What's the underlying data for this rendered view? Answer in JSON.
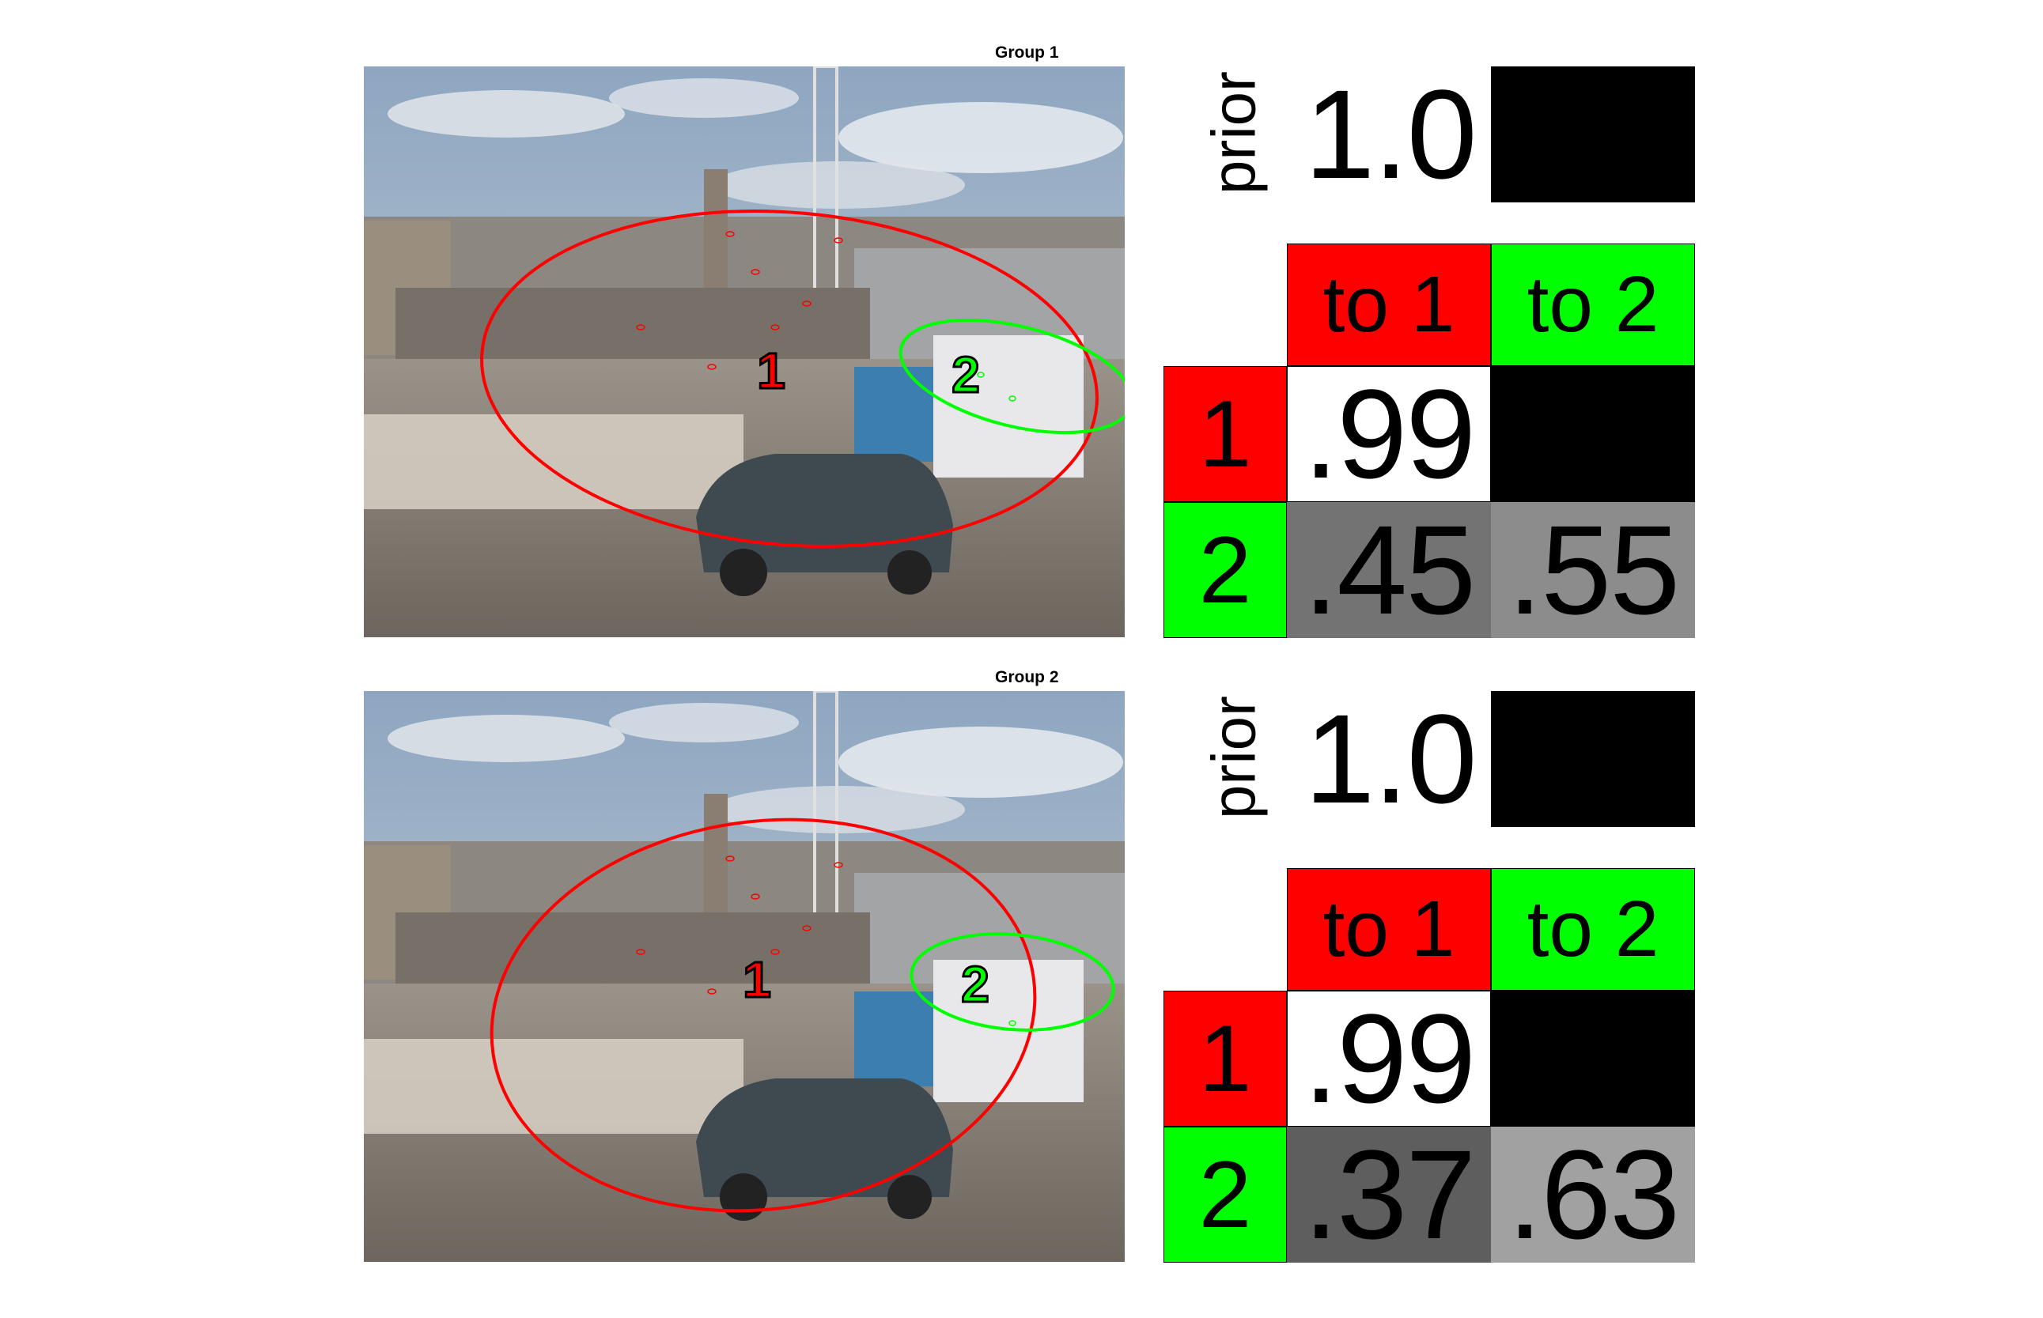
{
  "colors": {
    "red": "#ff0000",
    "green": "#00ff00",
    "black": "#000000",
    "white": "#ffffff"
  },
  "groups": [
    {
      "title": "Group 1",
      "prior_label": "prior",
      "prior_value": "1.0",
      "headers": [
        "to 1",
        "to 2"
      ],
      "row_labels": [
        "1",
        "2"
      ],
      "matrix": [
        [
          ".99",
          ""
        ],
        [
          ".45",
          ".55"
        ]
      ],
      "cell_colors": [
        [
          "#ffffff",
          "#000000"
        ],
        [
          "#737373",
          "#8c8c8c"
        ]
      ],
      "markers": [
        "1",
        "2"
      ]
    },
    {
      "title": "Group 2",
      "prior_label": "prior",
      "prior_value": "1.0",
      "headers": [
        "to 1",
        "to 2"
      ],
      "row_labels": [
        "1",
        "2"
      ],
      "matrix": [
        [
          ".99",
          ""
        ],
        [
          ".37",
          ".63"
        ]
      ],
      "cell_colors": [
        [
          "#ffffff",
          "#000000"
        ],
        [
          "#5e5e5e",
          "#a1a1a1"
        ]
      ],
      "markers": [
        "1",
        "2"
      ]
    }
  ]
}
